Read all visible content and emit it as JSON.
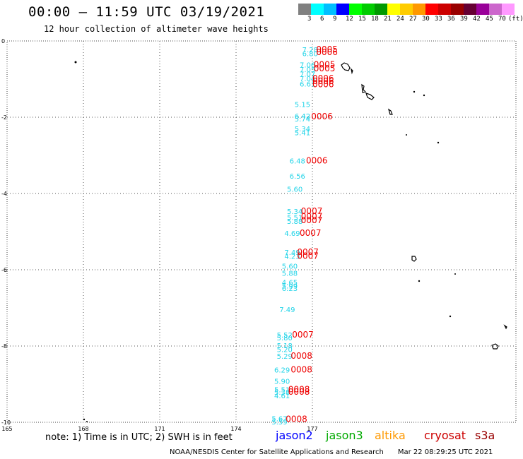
{
  "header": {
    "title": "00:00 – 11:59 UTC 03/19/2021",
    "subtitle": "12 hour collection of altimeter wave heights"
  },
  "colorbar": {
    "colors": [
      "#808080",
      "#00ffff",
      "#00bfff",
      "#0000ff",
      "#00ff00",
      "#00cc00",
      "#009900",
      "#ffff00",
      "#ffcc00",
      "#ff9900",
      "#ff0000",
      "#cc0000",
      "#990000",
      "#660033",
      "#990099",
      "#cc66cc",
      "#ff99ff"
    ],
    "labels": [
      "3",
      "6",
      "9",
      "12",
      "15",
      "18",
      "21",
      "24",
      "27",
      "30",
      "33",
      "36",
      "39",
      "42",
      "45",
      "70",
      "(ft)"
    ]
  },
  "map": {
    "x_ticks": [
      "165",
      "168",
      "171",
      "174",
      "177"
    ],
    "y_ticks": [
      "0",
      "-2",
      "-4",
      "-6",
      "-8",
      "-10"
    ],
    "readings": [
      {
        "lon": 176.6,
        "lat": -0.22,
        "text": "7.28",
        "color": "#22d4e8"
      },
      {
        "lon": 176.6,
        "lat": -0.32,
        "text": "6.80",
        "color": "#22d4e8"
      },
      {
        "lon": 176.5,
        "lat": -0.62,
        "text": "7.06",
        "color": "#22d4e8"
      },
      {
        "lon": 176.5,
        "lat": -0.74,
        "text": "7.05",
        "color": "#22d4e8"
      },
      {
        "lon": 176.5,
        "lat": -0.86,
        "text": "7.07",
        "color": "#22d4e8"
      },
      {
        "lon": 176.5,
        "lat": -0.98,
        "text": "7.04",
        "color": "#22d4e8"
      },
      {
        "lon": 176.5,
        "lat": -1.12,
        "text": "6.61",
        "color": "#22d4e8"
      },
      {
        "lon": 176.3,
        "lat": -1.66,
        "text": "5.15",
        "color": "#22d4e8"
      },
      {
        "lon": 176.3,
        "lat": -1.96,
        "text": "6.42",
        "color": "#22d4e8"
      },
      {
        "lon": 176.3,
        "lat": -2.04,
        "text": "5.74",
        "color": "#22d4e8"
      },
      {
        "lon": 176.3,
        "lat": -2.3,
        "text": "5.34",
        "color": "#22d4e8"
      },
      {
        "lon": 176.3,
        "lat": -2.4,
        "text": "5.41",
        "color": "#22d4e8"
      },
      {
        "lon": 176.1,
        "lat": -3.14,
        "text": "6.48",
        "color": "#22d4e8"
      },
      {
        "lon": 176.1,
        "lat": -3.54,
        "text": "6.56",
        "color": "#22d4e8"
      },
      {
        "lon": 176.0,
        "lat": -3.88,
        "text": "5.60",
        "color": "#22d4e8"
      },
      {
        "lon": 176.0,
        "lat": -4.46,
        "text": "5.34",
        "color": "#22d4e8"
      },
      {
        "lon": 176.0,
        "lat": -4.62,
        "text": "5.51",
        "color": "#22d4e8"
      },
      {
        "lon": 176.0,
        "lat": -4.72,
        "text": "5.88",
        "color": "#22d4e8"
      },
      {
        "lon": 175.9,
        "lat": -5.04,
        "text": "4.69",
        "color": "#22d4e8"
      },
      {
        "lon": 175.9,
        "lat": -5.54,
        "text": "7.49",
        "color": "#22d4e8"
      },
      {
        "lon": 175.9,
        "lat": -5.64,
        "text": "4.23",
        "color": "#22d4e8"
      },
      {
        "lon": 175.8,
        "lat": -5.9,
        "text": "5.60",
        "color": "#22d4e8"
      },
      {
        "lon": 175.8,
        "lat": -6.08,
        "text": "5.88",
        "color": "#22d4e8"
      },
      {
        "lon": 175.8,
        "lat": -6.32,
        "text": "4.65",
        "color": "#22d4e8"
      },
      {
        "lon": 175.8,
        "lat": -6.42,
        "text": "5.99",
        "color": "#22d4e8"
      },
      {
        "lon": 175.8,
        "lat": -6.48,
        "text": "6.23",
        "color": "#22d4e8"
      },
      {
        "lon": 175.7,
        "lat": -7.04,
        "text": "7.49",
        "color": "#22d4e8"
      },
      {
        "lon": 175.6,
        "lat": -7.7,
        "text": "5.52",
        "color": "#22d4e8"
      },
      {
        "lon": 175.6,
        "lat": -7.78,
        "text": "5.80",
        "color": "#22d4e8"
      },
      {
        "lon": 175.6,
        "lat": -7.98,
        "text": "5.18",
        "color": "#22d4e8"
      },
      {
        "lon": 175.6,
        "lat": -8.08,
        "text": "5.20",
        "color": "#22d4e8"
      },
      {
        "lon": 175.6,
        "lat": -8.26,
        "text": "5.29",
        "color": "#22d4e8"
      },
      {
        "lon": 175.5,
        "lat": -8.62,
        "text": "6.29",
        "color": "#22d4e8"
      },
      {
        "lon": 175.5,
        "lat": -8.92,
        "text": "5.90",
        "color": "#22d4e8"
      },
      {
        "lon": 175.5,
        "lat": -9.14,
        "text": "5.51",
        "color": "#22d4e8"
      },
      {
        "lon": 175.5,
        "lat": -9.2,
        "text": "5.38",
        "color": "#22d4e8"
      },
      {
        "lon": 175.5,
        "lat": -9.3,
        "text": "4.61",
        "color": "#22d4e8"
      },
      {
        "lon": 175.4,
        "lat": -9.9,
        "text": "5.67",
        "color": "#22d4e8"
      },
      {
        "lon": 175.4,
        "lat": -9.98,
        "text": "5.59",
        "color": "#22d4e8"
      },
      {
        "lon": 177.15,
        "lat": -0.22,
        "text": "0005",
        "color": "#ee0000"
      },
      {
        "lon": 177.15,
        "lat": -0.3,
        "text": "0006",
        "color": "#ee0000"
      },
      {
        "lon": 177.05,
        "lat": -0.62,
        "text": "0005",
        "color": "#ee0000"
      },
      {
        "lon": 177.05,
        "lat": -0.72,
        "text": "0005",
        "color": "#ee0000"
      },
      {
        "lon": 177.0,
        "lat": -0.98,
        "text": "0006",
        "color": "#ee0000"
      },
      {
        "lon": 177.0,
        "lat": -1.06,
        "text": "0006",
        "color": "#ee0000"
      },
      {
        "lon": 177.0,
        "lat": -1.14,
        "text": "0006",
        "color": "#ee0000"
      },
      {
        "lon": 176.95,
        "lat": -1.98,
        "text": "0006",
        "color": "#ee0000"
      },
      {
        "lon": 176.75,
        "lat": -3.14,
        "text": "0006",
        "color": "#ee0000"
      },
      {
        "lon": 176.55,
        "lat": -4.46,
        "text": "0007",
        "color": "#ee0000"
      },
      {
        "lon": 176.55,
        "lat": -4.6,
        "text": "0007",
        "color": "#ee0000"
      },
      {
        "lon": 176.55,
        "lat": -4.7,
        "text": "0007",
        "color": "#ee0000"
      },
      {
        "lon": 176.5,
        "lat": -5.04,
        "text": "0007",
        "color": "#ee0000"
      },
      {
        "lon": 176.4,
        "lat": -5.54,
        "text": "0007",
        "color": "#ee0000"
      },
      {
        "lon": 176.4,
        "lat": -5.64,
        "text": "0007",
        "color": "#ee0000"
      },
      {
        "lon": 176.2,
        "lat": -7.7,
        "text": "0007",
        "color": "#ee0000"
      },
      {
        "lon": 176.15,
        "lat": -8.26,
        "text": "0008",
        "color": "#ee0000"
      },
      {
        "lon": 176.15,
        "lat": -8.62,
        "text": "0008",
        "color": "#ee0000"
      },
      {
        "lon": 176.05,
        "lat": -9.14,
        "text": "0008",
        "color": "#ee0000"
      },
      {
        "lon": 176.05,
        "lat": -9.2,
        "text": "0008",
        "color": "#ee0000"
      },
      {
        "lon": 175.95,
        "lat": -9.92,
        "text": "0008",
        "color": "#ee0000"
      }
    ]
  },
  "legend": {
    "note": "note: 1) Time is in UTC; 2) SWH is in feet",
    "satellites": [
      {
        "name": "jason2",
        "color": "#0000ff"
      },
      {
        "name": "jason3",
        "color": "#00aa00"
      },
      {
        "name": "altika",
        "color": "#ff9900"
      },
      {
        "name": "cryosat",
        "color": "#cc0000"
      },
      {
        "name": "s3a",
        "color": "#990000"
      }
    ]
  },
  "footer": {
    "credit": "NOAA/NESDIS Center for Satellite Applications and Research",
    "timestamp": "Mar 22 08:29:25 UTC 2021"
  }
}
